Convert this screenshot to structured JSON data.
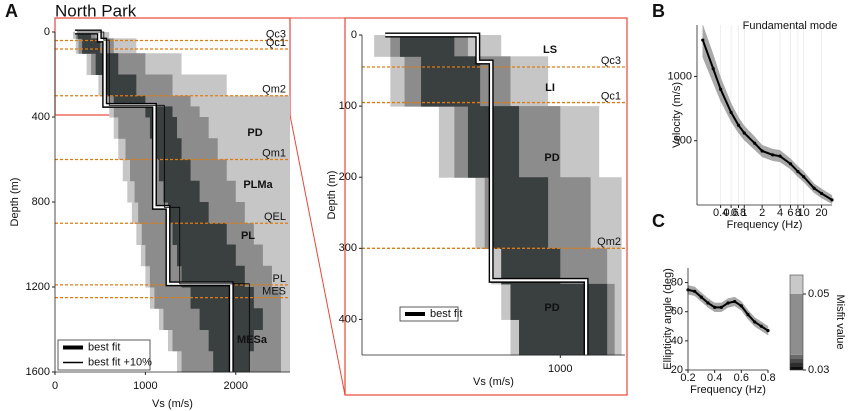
{
  "chart_data": [
    {
      "type": "profile",
      "panel": "A",
      "title": "North Park",
      "x_label": "Vs (m/s)",
      "y_label": "Depth (m)",
      "xlim": [
        0,
        2600
      ],
      "ylim": [
        0,
        1600
      ],
      "y_inverted": true,
      "xticks": [
        0,
        1000,
        2000
      ],
      "yticks": [
        0,
        400,
        800,
        1200,
        1600
      ],
      "legend": "lower left",
      "hline_color": "#e07b10",
      "envelopes": [
        {
          "color": "#c6c6c6",
          "y": [
            0,
            30,
            100,
            200,
            300,
            350,
            400,
            500,
            600,
            700,
            800,
            900,
            1000,
            1100,
            1200,
            1300,
            1400,
            1500,
            1600
          ],
          "x_low": [
            200,
            230,
            350,
            480,
            550,
            600,
            650,
            700,
            750,
            800,
            850,
            900,
            950,
            1000,
            1050,
            1150,
            1250,
            1350,
            1400
          ],
          "x_high": [
            600,
            900,
            1400,
            1900,
            2600,
            2600,
            2600,
            2600,
            2600,
            2600,
            2600,
            2600,
            2600,
            2600,
            2600,
            2600,
            2600,
            2600,
            2600
          ]
        },
        {
          "color": "#8c8c8c",
          "y": [
            0,
            30,
            100,
            200,
            300,
            350,
            400,
            500,
            600,
            700,
            800,
            900,
            1000,
            1100,
            1200,
            1300,
            1400,
            1500,
            1600
          ],
          "x_low": [
            230,
            260,
            400,
            520,
            600,
            650,
            700,
            780,
            830,
            880,
            920,
            960,
            1000,
            1050,
            1100,
            1200,
            1300,
            1400,
            1450
          ],
          "x_high": [
            450,
            650,
            1000,
            1300,
            1500,
            1600,
            1700,
            1800,
            1900,
            2000,
            2100,
            2200,
            2300,
            2400,
            2500,
            2500,
            2500,
            2500,
            2500
          ]
        },
        {
          "color": "#3a3f3f",
          "y": [
            0,
            30,
            100,
            200,
            300,
            350,
            400,
            500,
            600,
            700,
            800,
            900,
            1000,
            1100,
            1200,
            1300,
            1400,
            1500,
            1600
          ],
          "x_low": [
            250,
            300,
            450,
            550,
            650,
            1000,
            1050,
            1100,
            1150,
            1200,
            1250,
            1300,
            1350,
            1400,
            1500,
            1600,
            1700,
            1750,
            1800
          ],
          "x_high": [
            400,
            500,
            700,
            900,
            1000,
            1300,
            1350,
            1400,
            1500,
            1600,
            1700,
            1900,
            2000,
            2100,
            2200,
            2300,
            2200,
            2150,
            2100
          ]
        }
      ],
      "series": [
        {
          "name": "best fit",
          "color": "#ffffff",
          "edge": "#000000",
          "x": [
            220,
            490,
            490,
            550,
            550,
            1100,
            1100,
            1250,
            1250,
            1950,
            1950
          ],
          "y": [
            0,
            0,
            38,
            38,
            345,
            345,
            825,
            825,
            1185,
            1185,
            1600
          ]
        },
        {
          "name": "best fit +10%",
          "color": "#000000",
          "x": [
            240,
            540,
            540,
            600,
            600,
            1210,
            1210,
            1380,
            1380,
            2150,
            2150
          ],
          "y": [
            0,
            0,
            38,
            38,
            345,
            345,
            825,
            825,
            1185,
            1185,
            1600
          ]
        }
      ],
      "hlines": [
        {
          "value": 40,
          "label": "Qc3"
        },
        {
          "value": 80,
          "label": "Qc1"
        },
        {
          "value": 300,
          "label": "Qm2"
        },
        {
          "value": 600,
          "label": "Qm1"
        },
        {
          "value": 900,
          "label": "QEL"
        },
        {
          "value": 1190,
          "label": "PL"
        },
        {
          "value": 1250,
          "label": "MES"
        }
      ],
      "annotations": [
        "PD",
        "PLMa",
        "PL",
        "MESa"
      ]
    },
    {
      "type": "profile",
      "x_label": "Vs (m/s)",
      "y_label": "Depth (m)",
      "xlog": true,
      "xlim": [
        180,
        1750
      ],
      "ylim": [
        0,
        450
      ],
      "y_inverted": true,
      "xticks": [
        1000
      ],
      "yticks": [
        0,
        100,
        200,
        300,
        400
      ],
      "legend": "lower left",
      "hline_color": "#e07b10",
      "envelopes": [
        {
          "color": "#c6c6c6",
          "y": [
            0,
            30,
            100,
            200,
            300,
            350,
            400,
            450
          ],
          "x_low": [
            200,
            230,
            350,
            480,
            550,
            600,
            650,
            700
          ],
          "x_high": [
            600,
            900,
            1400,
            1700,
            1700,
            1700,
            1700,
            1700
          ]
        },
        {
          "color": "#8c8c8c",
          "y": [
            0,
            30,
            100,
            200,
            300,
            350,
            400,
            450
          ],
          "x_low": [
            230,
            260,
            400,
            520,
            600,
            650,
            700,
            780
          ],
          "x_high": [
            450,
            650,
            1000,
            1300,
            1500,
            1600,
            1600,
            1600
          ]
        },
        {
          "color": "#3a3f3f",
          "y": [
            0,
            30,
            100,
            200,
            300,
            350,
            400,
            450
          ],
          "x_low": [
            250,
            300,
            450,
            550,
            600,
            650,
            700,
            750
          ],
          "x_high": [
            400,
            500,
            700,
            900,
            1000,
            1500,
            1500,
            1500
          ]
        }
      ],
      "series": [
        {
          "name": "best fit",
          "color": "#ffffff",
          "edge": "#000000",
          "x": [
            220,
            490,
            490,
            550,
            550,
            1250,
            1250
          ],
          "y": [
            0,
            0,
            38,
            38,
            345,
            345,
            450
          ]
        }
      ],
      "hlines": [
        {
          "value": 45,
          "label": "Qc3"
        },
        {
          "value": 95,
          "label": "Qc1"
        },
        {
          "value": 300,
          "label": "Qm2"
        }
      ],
      "annotations": [
        "LS",
        "LI",
        "PD",
        "PD"
      ]
    },
    {
      "type": "line",
      "panel": "B",
      "x_label": "Frequency (Hz)",
      "y_label": "Velocity (m/s)",
      "xlog": true,
      "grid": true,
      "xlim": [
        0.16,
        30
      ],
      "ylim": [
        0,
        1400
      ],
      "xticks": [
        0.4,
        0.6,
        0.8,
        1,
        2,
        4,
        6,
        8,
        10,
        20
      ],
      "yticks": [
        500,
        1000
      ],
      "annotations": [
        "Fundamental mode"
      ],
      "x": [
        0.2,
        0.3,
        0.4,
        0.6,
        0.8,
        1,
        1.5,
        2,
        3,
        4,
        6,
        8,
        10,
        15,
        20,
        30
      ],
      "band": {
        "color": "#a8a8a8",
        "lower": [
          1150,
          950,
          810,
          650,
          560,
          505,
          430,
          375,
          345,
          335,
          280,
          220,
          180,
          95,
          55,
          10
        ],
        "upper": [
          1400,
          1170,
          990,
          790,
          680,
          615,
          530,
          465,
          435,
          425,
          360,
          300,
          260,
          165,
          125,
          75
        ]
      },
      "series": [
        {
          "color": "#000000",
          "values": [
            1283,
            1060,
            900,
            720,
            620,
            560,
            480,
            420,
            390,
            380,
            320,
            260,
            220,
            130,
            90,
            40
          ]
        }
      ]
    },
    {
      "type": "line",
      "panel": "C",
      "x_label": "Frequency (Hz)",
      "y_label": "Ellipticity angle (deg)",
      "xlim": [
        0.2,
        0.8
      ],
      "ylim": [
        20,
        90
      ],
      "xticks": [
        0.2,
        0.4,
        0.6,
        0.8
      ],
      "yticks": [
        20,
        40,
        60,
        80
      ],
      "x": [
        0.2,
        0.25,
        0.3,
        0.35,
        0.4,
        0.45,
        0.5,
        0.55,
        0.6,
        0.65,
        0.7,
        0.75,
        0.8
      ],
      "band": {
        "color": "#a8a8a8",
        "lower": [
          72,
          71,
          67,
          63,
          60,
          60,
          63,
          64,
          61,
          55,
          50,
          47,
          44
        ],
        "upper": [
          78,
          77,
          73,
          69,
          66,
          66,
          69,
          70,
          67,
          61,
          56,
          53,
          50
        ]
      },
      "series": [
        {
          "color": "#000000",
          "values": [
            75,
            74,
            70,
            66,
            63,
            63,
            66,
            67,
            64,
            58,
            53,
            50,
            47
          ]
        }
      ],
      "colorbar": {
        "label": "Misfit value",
        "lim": [
          0.03,
          0.055
        ],
        "ticks": [
          0.03,
          0.05
        ],
        "bounds": [
          0.03,
          0.031,
          0.032,
          0.033,
          0.034,
          0.05,
          0.055
        ],
        "colors": [
          "#0d0d0d",
          "#2c2c2c",
          "#4a4a4a",
          "#6a6a6a",
          "#8e8e8e",
          "#c8c8c8"
        ]
      }
    }
  ]
}
